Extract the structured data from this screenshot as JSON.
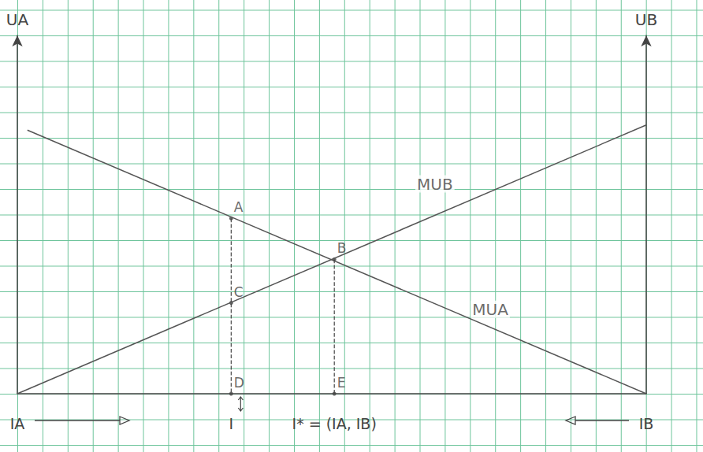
{
  "chart_data": {
    "type": "line",
    "xlim": [
      0,
      25
    ],
    "ylim": [
      0,
      14
    ],
    "tick_labels": false,
    "grid": true,
    "y_label": "UA",
    "y2_label": "UB",
    "series": [
      {
        "name": "MUA",
        "color": "#555555",
        "x": [
          0.4,
          25
        ],
        "values": [
          10.3,
          0
        ],
        "name_at": [
          18.8,
          3.3
        ]
      },
      {
        "name": "MUB",
        "color": "#555555",
        "x": [
          0,
          25
        ],
        "values": [
          0,
          10.5
        ],
        "name_at": [
          16.6,
          8.2
        ]
      }
    ],
    "guides": [
      {
        "x": [
          8.5,
          8.5
        ],
        "values": [
          6.85,
          0
        ],
        "line_style": "dashed"
      },
      {
        "x": [
          12.6,
          12.6
        ],
        "values": [
          5.25,
          0
        ],
        "line_style": "dashed"
      }
    ],
    "points": {
      "labels": [
        "A",
        "B",
        "C",
        "D",
        "E"
      ],
      "x": [
        8.5,
        12.6,
        8.5,
        8.5,
        12.6
      ],
      "y": [
        6.85,
        5.25,
        3.55,
        0,
        0
      ]
    },
    "x_labels": [
      {
        "text": "IA",
        "x": 0
      },
      {
        "text": "I",
        "x": 8.5
      },
      {
        "text": "I* = (IA, IB)",
        "x": 12.6
      },
      {
        "text": "IB",
        "x": 25
      }
    ]
  }
}
